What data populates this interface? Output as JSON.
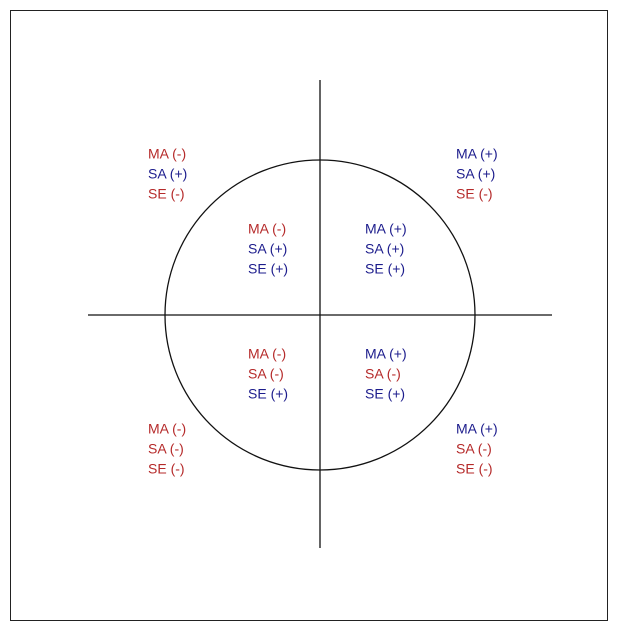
{
  "colors": {
    "negative": "#b52a2a",
    "positive": "#1c1c8c"
  },
  "groups": [
    {
      "name": "outer-top-left",
      "lines": [
        {
          "text": "MA (-)",
          "tone": "negative"
        },
        {
          "text": "SA (+)",
          "tone": "positive"
        },
        {
          "text": "SE (-)",
          "tone": "negative"
        }
      ]
    },
    {
      "name": "outer-top-right",
      "lines": [
        {
          "text": "MA (+)",
          "tone": "positive"
        },
        {
          "text": "SA (+)",
          "tone": "positive"
        },
        {
          "text": "SE (-)",
          "tone": "negative"
        }
      ]
    },
    {
      "name": "inner-top-left",
      "lines": [
        {
          "text": "MA (-)",
          "tone": "negative"
        },
        {
          "text": "SA (+)",
          "tone": "positive"
        },
        {
          "text": "SE (+)",
          "tone": "positive"
        }
      ]
    },
    {
      "name": "inner-top-right",
      "lines": [
        {
          "text": "MA (+)",
          "tone": "positive"
        },
        {
          "text": "SA (+)",
          "tone": "positive"
        },
        {
          "text": "SE (+)",
          "tone": "positive"
        }
      ]
    },
    {
      "name": "inner-bottom-left",
      "lines": [
        {
          "text": "MA (-)",
          "tone": "negative"
        },
        {
          "text": "SA (-)",
          "tone": "negative"
        },
        {
          "text": "SE (+)",
          "tone": "positive"
        }
      ]
    },
    {
      "name": "inner-bottom-right",
      "lines": [
        {
          "text": "MA (+)",
          "tone": "positive"
        },
        {
          "text": "SA (-)",
          "tone": "negative"
        },
        {
          "text": "SE (+)",
          "tone": "positive"
        }
      ]
    },
    {
      "name": "outer-bottom-left",
      "lines": [
        {
          "text": "MA (-)",
          "tone": "negative"
        },
        {
          "text": "SA (-)",
          "tone": "negative"
        },
        {
          "text": "SE (-)",
          "tone": "negative"
        }
      ]
    },
    {
      "name": "outer-bottom-right",
      "lines": [
        {
          "text": "MA (+)",
          "tone": "positive"
        },
        {
          "text": "SA (-)",
          "tone": "negative"
        },
        {
          "text": "SE (-)",
          "tone": "negative"
        }
      ]
    }
  ]
}
